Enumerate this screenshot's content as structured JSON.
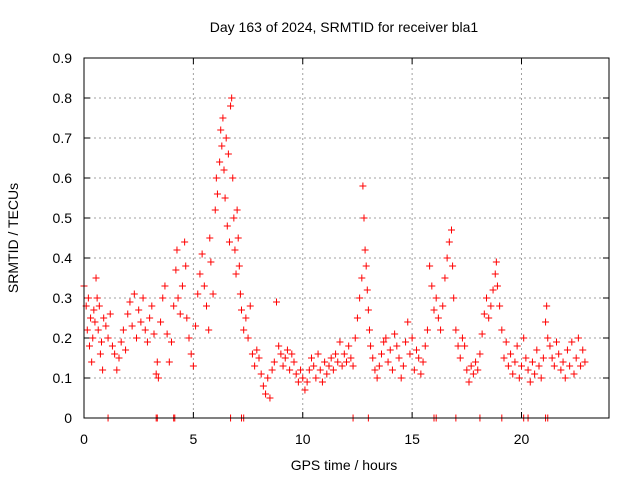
{
  "chart_data": {
    "type": "scatter",
    "title": "Day 163 of 2024, SRMTID for receiver bla1",
    "xlabel": "GPS time / hours",
    "ylabel": "SRMTID / TECUs",
    "xlim": [
      0,
      24
    ],
    "ylim": [
      0,
      0.9
    ],
    "xticks": [
      0,
      5,
      10,
      15,
      20
    ],
    "xtick_labels": [
      "0",
      "5",
      "10",
      "15",
      "20"
    ],
    "yticks": [
      0,
      0.1,
      0.2,
      0.3,
      0.4,
      0.5,
      0.6,
      0.7,
      0.8,
      0.9
    ],
    "ytick_labels": [
      "0",
      "0.1",
      "0.2",
      "0.3",
      "0.4",
      "0.5",
      "0.6",
      "0.7",
      "0.8",
      "0.9"
    ],
    "grid": true,
    "marker": "+",
    "color": "#ff0000",
    "series": [
      {
        "name": "SRMTID",
        "points": [
          [
            0.0,
            0.33
          ],
          [
            0.1,
            0.28
          ],
          [
            0.15,
            0.22
          ],
          [
            0.2,
            0.3
          ],
          [
            0.25,
            0.18
          ],
          [
            0.3,
            0.25
          ],
          [
            0.35,
            0.14
          ],
          [
            0.4,
            0.2
          ],
          [
            0.45,
            0.27
          ],
          [
            0.5,
            0.24
          ],
          [
            0.55,
            0.35
          ],
          [
            0.6,
            0.3
          ],
          [
            0.65,
            0.22
          ],
          [
            0.7,
            0.28
          ],
          [
            0.75,
            0.16
          ],
          [
            0.8,
            0.19
          ],
          [
            0.85,
            0.12
          ],
          [
            0.9,
            0.25
          ],
          [
            1.0,
            0.23
          ],
          [
            1.1,
            0.2
          ],
          [
            1.2,
            0.26
          ],
          [
            1.3,
            0.18
          ],
          [
            1.4,
            0.16
          ],
          [
            1.5,
            0.12
          ],
          [
            1.6,
            0.15
          ],
          [
            1.7,
            0.19
          ],
          [
            1.8,
            0.22
          ],
          [
            1.9,
            0.17
          ],
          [
            2.0,
            0.26
          ],
          [
            2.1,
            0.29
          ],
          [
            2.2,
            0.23
          ],
          [
            2.3,
            0.31
          ],
          [
            2.4,
            0.2
          ],
          [
            2.5,
            0.27
          ],
          [
            2.6,
            0.24
          ],
          [
            2.7,
            0.3
          ],
          [
            2.8,
            0.22
          ],
          [
            2.9,
            0.19
          ],
          [
            3.0,
            0.25
          ],
          [
            3.1,
            0.28
          ],
          [
            3.2,
            0.21
          ],
          [
            3.3,
            0.11
          ],
          [
            3.35,
            0.14
          ],
          [
            3.4,
            0.1
          ],
          [
            3.5,
            0.24
          ],
          [
            3.6,
            0.3
          ],
          [
            3.7,
            0.33
          ],
          [
            3.8,
            0.21
          ],
          [
            3.9,
            0.14
          ],
          [
            4.0,
            0.19
          ],
          [
            4.1,
            0.28
          ],
          [
            4.2,
            0.37
          ],
          [
            4.25,
            0.42
          ],
          [
            4.3,
            0.3
          ],
          [
            4.4,
            0.26
          ],
          [
            4.5,
            0.33
          ],
          [
            4.6,
            0.44
          ],
          [
            4.65,
            0.38
          ],
          [
            4.7,
            0.25
          ],
          [
            4.8,
            0.2
          ],
          [
            4.9,
            0.16
          ],
          [
            5.0,
            0.13
          ],
          [
            5.1,
            0.23
          ],
          [
            5.2,
            0.31
          ],
          [
            5.3,
            0.36
          ],
          [
            5.4,
            0.41
          ],
          [
            5.5,
            0.33
          ],
          [
            5.6,
            0.28
          ],
          [
            5.7,
            0.22
          ],
          [
            5.75,
            0.45
          ],
          [
            5.8,
            0.39
          ],
          [
            5.9,
            0.31
          ],
          [
            6.0,
            0.52
          ],
          [
            6.05,
            0.6
          ],
          [
            6.1,
            0.56
          ],
          [
            6.2,
            0.64
          ],
          [
            6.25,
            0.72
          ],
          [
            6.3,
            0.68
          ],
          [
            6.35,
            0.75
          ],
          [
            6.4,
            0.62
          ],
          [
            6.45,
            0.55
          ],
          [
            6.5,
            0.7
          ],
          [
            6.55,
            0.48
          ],
          [
            6.6,
            0.66
          ],
          [
            6.65,
            0.44
          ],
          [
            6.7,
            0.78
          ],
          [
            6.75,
            0.8
          ],
          [
            6.8,
            0.6
          ],
          [
            6.85,
            0.5
          ],
          [
            6.9,
            0.42
          ],
          [
            6.95,
            0.36
          ],
          [
            7.0,
            0.52
          ],
          [
            7.05,
            0.45
          ],
          [
            7.1,
            0.38
          ],
          [
            7.15,
            0.31
          ],
          [
            7.2,
            0.27
          ],
          [
            7.3,
            0.22
          ],
          [
            7.4,
            0.25
          ],
          [
            7.5,
            0.2
          ],
          [
            7.6,
            0.28
          ],
          [
            7.7,
            0.16
          ],
          [
            7.8,
            0.13
          ],
          [
            7.9,
            0.17
          ],
          [
            8.0,
            0.15
          ],
          [
            8.1,
            0.11
          ],
          [
            8.2,
            0.08
          ],
          [
            8.3,
            0.06
          ],
          [
            8.4,
            0.1
          ],
          [
            8.5,
            0.05
          ],
          [
            8.6,
            0.12
          ],
          [
            8.7,
            0.14
          ],
          [
            8.8,
            0.29
          ],
          [
            8.9,
            0.18
          ],
          [
            9.0,
            0.16
          ],
          [
            9.1,
            0.13
          ],
          [
            9.2,
            0.15
          ],
          [
            9.3,
            0.17
          ],
          [
            9.4,
            0.12
          ],
          [
            9.5,
            0.16
          ],
          [
            9.6,
            0.14
          ],
          [
            9.7,
            0.11
          ],
          [
            9.8,
            0.09
          ],
          [
            9.9,
            0.12
          ],
          [
            10.0,
            0.1
          ],
          [
            10.1,
            0.07
          ],
          [
            10.2,
            0.09
          ],
          [
            10.3,
            0.12
          ],
          [
            10.4,
            0.15
          ],
          [
            10.5,
            0.13
          ],
          [
            10.6,
            0.1
          ],
          [
            10.7,
            0.16
          ],
          [
            10.8,
            0.12
          ],
          [
            10.9,
            0.09
          ],
          [
            11.0,
            0.14
          ],
          [
            11.1,
            0.11
          ],
          [
            11.2,
            0.13
          ],
          [
            11.3,
            0.15
          ],
          [
            11.4,
            0.12
          ],
          [
            11.5,
            0.16
          ],
          [
            11.6,
            0.14
          ],
          [
            11.7,
            0.19
          ],
          [
            11.8,
            0.13
          ],
          [
            11.9,
            0.16
          ],
          [
            12.0,
            0.14
          ],
          [
            12.1,
            0.18
          ],
          [
            12.2,
            0.15
          ],
          [
            12.3,
            0.13
          ],
          [
            12.4,
            0.2
          ],
          [
            12.5,
            0.25
          ],
          [
            12.6,
            0.3
          ],
          [
            12.7,
            0.35
          ],
          [
            12.75,
            0.58
          ],
          [
            12.8,
            0.5
          ],
          [
            12.85,
            0.42
          ],
          [
            12.9,
            0.38
          ],
          [
            12.95,
            0.32
          ],
          [
            13.0,
            0.27
          ],
          [
            13.05,
            0.22
          ],
          [
            13.1,
            0.18
          ],
          [
            13.2,
            0.15
          ],
          [
            13.3,
            0.12
          ],
          [
            13.4,
            0.1
          ],
          [
            13.5,
            0.13
          ],
          [
            13.6,
            0.16
          ],
          [
            13.7,
            0.19
          ],
          [
            13.8,
            0.2
          ],
          [
            13.9,
            0.14
          ],
          [
            14.0,
            0.17
          ],
          [
            14.1,
            0.12
          ],
          [
            14.2,
            0.21
          ],
          [
            14.3,
            0.18
          ],
          [
            14.4,
            0.15
          ],
          [
            14.5,
            0.1
          ],
          [
            14.6,
            0.13
          ],
          [
            14.7,
            0.19
          ],
          [
            14.8,
            0.24
          ],
          [
            14.9,
            0.16
          ],
          [
            15.0,
            0.2
          ],
          [
            15.1,
            0.12
          ],
          [
            15.2,
            0.17
          ],
          [
            15.3,
            0.15
          ],
          [
            15.4,
            0.11
          ],
          [
            15.5,
            0.14
          ],
          [
            15.6,
            0.18
          ],
          [
            15.7,
            0.22
          ],
          [
            15.8,
            0.38
          ],
          [
            15.9,
            0.33
          ],
          [
            16.0,
            0.27
          ],
          [
            16.1,
            0.3
          ],
          [
            16.2,
            0.25
          ],
          [
            16.3,
            0.22
          ],
          [
            16.4,
            0.28
          ],
          [
            16.5,
            0.35
          ],
          [
            16.6,
            0.4
          ],
          [
            16.7,
            0.44
          ],
          [
            16.8,
            0.47
          ],
          [
            16.85,
            0.38
          ],
          [
            16.9,
            0.3
          ],
          [
            17.0,
            0.22
          ],
          [
            17.1,
            0.18
          ],
          [
            17.2,
            0.15
          ],
          [
            17.3,
            0.2
          ],
          [
            17.4,
            0.18
          ],
          [
            17.5,
            0.12
          ],
          [
            17.6,
            0.09
          ],
          [
            17.7,
            0.13
          ],
          [
            17.8,
            0.11
          ],
          [
            17.9,
            0.14
          ],
          [
            18.0,
            0.12
          ],
          [
            18.1,
            0.16
          ],
          [
            18.2,
            0.21
          ],
          [
            18.3,
            0.26
          ],
          [
            18.4,
            0.3
          ],
          [
            18.5,
            0.25
          ],
          [
            18.6,
            0.28
          ],
          [
            18.7,
            0.32
          ],
          [
            18.8,
            0.36
          ],
          [
            18.85,
            0.39
          ],
          [
            18.9,
            0.33
          ],
          [
            19.0,
            0.28
          ],
          [
            19.1,
            0.22
          ],
          [
            19.2,
            0.15
          ],
          [
            19.3,
            0.19
          ],
          [
            19.4,
            0.13
          ],
          [
            19.5,
            0.16
          ],
          [
            19.6,
            0.11
          ],
          [
            19.7,
            0.14
          ],
          [
            19.8,
            0.18
          ],
          [
            19.9,
            0.1
          ],
          [
            20.0,
            0.13
          ],
          [
            20.1,
            0.2
          ],
          [
            20.2,
            0.15
          ],
          [
            20.3,
            0.12
          ],
          [
            20.4,
            0.09
          ],
          [
            20.5,
            0.14
          ],
          [
            20.6,
            0.11
          ],
          [
            20.7,
            0.17
          ],
          [
            20.8,
            0.13
          ],
          [
            20.9,
            0.1
          ],
          [
            21.0,
            0.15
          ],
          [
            21.1,
            0.24
          ],
          [
            21.15,
            0.28
          ],
          [
            21.2,
            0.2
          ],
          [
            21.3,
            0.18
          ],
          [
            21.4,
            0.15
          ],
          [
            21.5,
            0.13
          ],
          [
            21.6,
            0.19
          ],
          [
            21.7,
            0.16
          ],
          [
            21.8,
            0.12
          ],
          [
            21.9,
            0.14
          ],
          [
            22.0,
            0.1
          ],
          [
            22.1,
            0.17
          ],
          [
            22.2,
            0.13
          ],
          [
            22.3,
            0.19
          ],
          [
            22.4,
            0.11
          ],
          [
            22.5,
            0.15
          ],
          [
            22.6,
            0.2
          ],
          [
            22.7,
            0.13
          ],
          [
            22.8,
            0.17
          ],
          [
            22.9,
            0.14
          ]
        ]
      }
    ],
    "zero_points_x": [
      1.1,
      3.3,
      3.35,
      4.1,
      4.15,
      6.7,
      7.2,
      7.3,
      12.3,
      13.0,
      16.0,
      16.1,
      17.0,
      18.1,
      19.1,
      20.1,
      20.3,
      21.1,
      21.2
    ]
  }
}
